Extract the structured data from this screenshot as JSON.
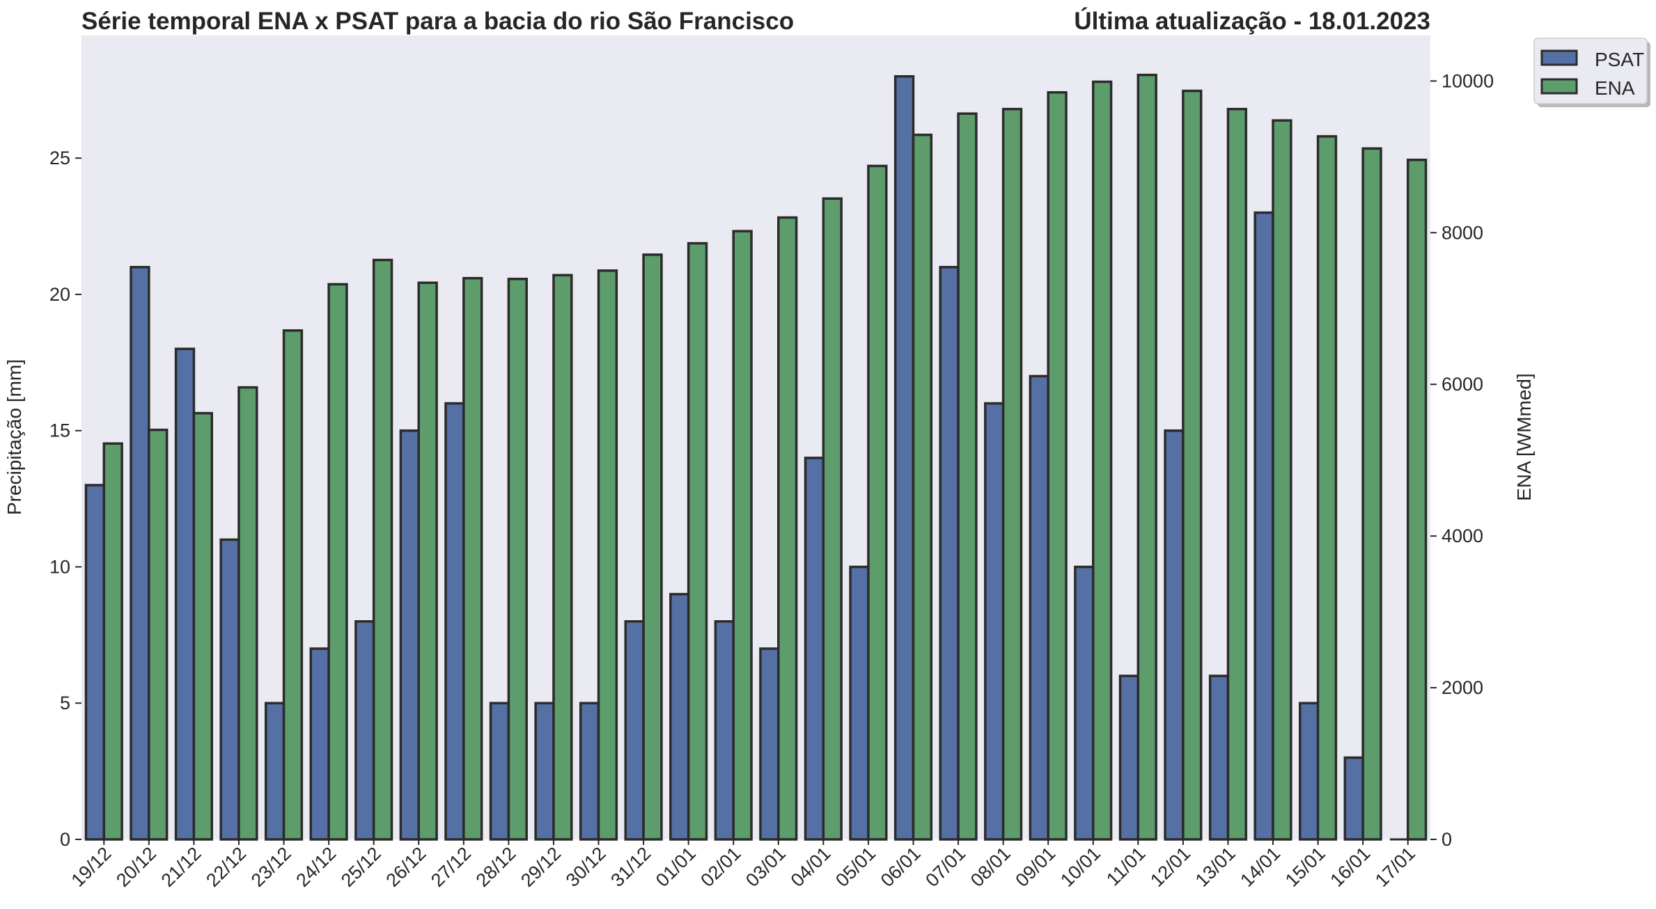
{
  "chart_data": {
    "type": "bar",
    "title": "Série temporal ENA x PSAT para a bacia do rio São Francisco",
    "subtitle": "Última atualização - 18.01.2023",
    "ylabel": "Precipitação [mm]",
    "y2label": "ENA [WMmed]",
    "xlabel": "",
    "categories": [
      "19/12",
      "20/12",
      "21/12",
      "22/12",
      "23/12",
      "24/12",
      "25/12",
      "26/12",
      "27/12",
      "28/12",
      "29/12",
      "30/12",
      "31/12",
      "01/01",
      "02/01",
      "03/01",
      "04/01",
      "05/01",
      "06/01",
      "07/01",
      "08/01",
      "09/01",
      "10/01",
      "11/01",
      "12/01",
      "13/01",
      "14/01",
      "15/01",
      "16/01",
      "17/01"
    ],
    "series": [
      {
        "name": "PSAT",
        "axis": "left",
        "color": "#5470a4",
        "values": [
          13,
          21,
          18,
          11,
          5,
          7,
          8,
          15,
          16,
          5,
          5,
          5,
          8,
          9,
          8,
          7,
          14,
          10,
          28,
          21,
          16,
          17,
          10,
          6,
          15,
          6,
          23,
          5,
          3,
          0
        ]
      },
      {
        "name": "ENA",
        "axis": "right",
        "color": "#5d9d6c",
        "values": [
          5220,
          5400,
          5620,
          5960,
          6710,
          7320,
          7640,
          7340,
          7400,
          7390,
          7440,
          7500,
          7710,
          7860,
          8020,
          8200,
          8450,
          8880,
          9290,
          9570,
          9630,
          9850,
          9990,
          10080,
          9870,
          9630,
          9480,
          9270,
          9110,
          8960
        ]
      }
    ],
    "ylim": [
      0,
      29.5
    ],
    "y2lim": [
      0,
      10600
    ],
    "yticks": [
      0,
      5,
      10,
      15,
      20,
      25
    ],
    "y2ticks": [
      0,
      2000,
      4000,
      6000,
      8000,
      10000
    ],
    "grid": false,
    "legend_position": "top-right, outside plot",
    "plot_background": "#eaeaf2",
    "edge_color": "#2b2b2b"
  }
}
